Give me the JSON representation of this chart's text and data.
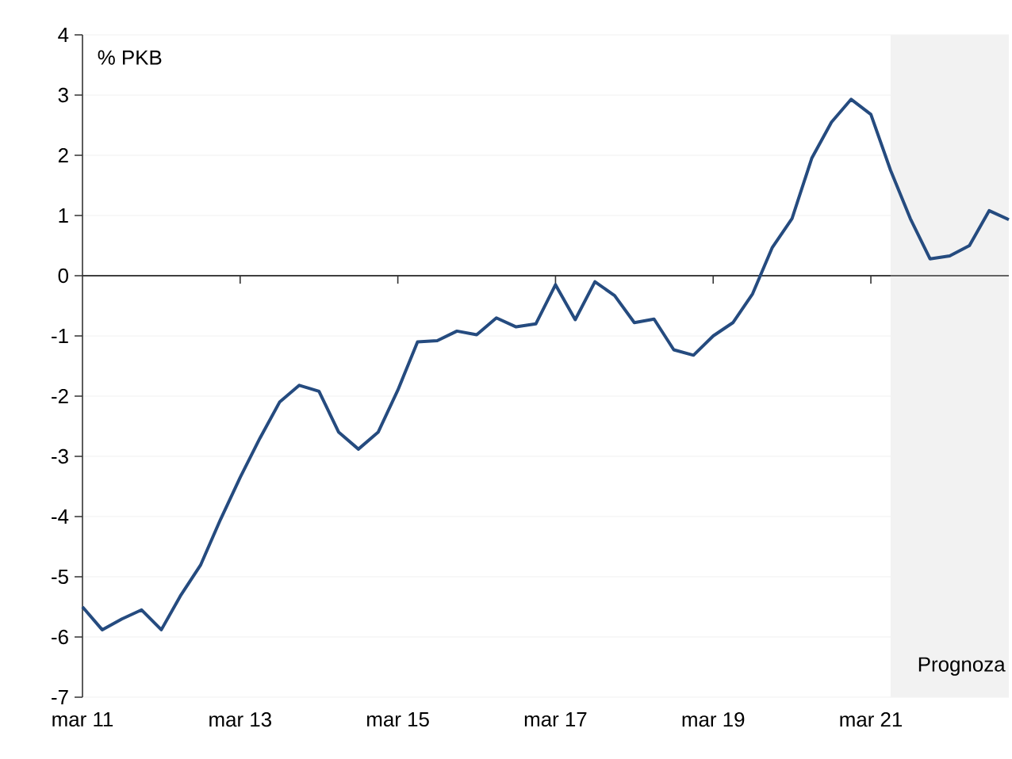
{
  "chart_data": {
    "type": "line",
    "ylabel": "% PKB",
    "x": [
      "2011-03",
      "2011-06",
      "2011-09",
      "2011-12",
      "2012-03",
      "2012-06",
      "2012-09",
      "2012-12",
      "2013-03",
      "2013-06",
      "2013-09",
      "2013-12",
      "2014-03",
      "2014-06",
      "2014-09",
      "2014-12",
      "2015-03",
      "2015-06",
      "2015-09",
      "2015-12",
      "2016-03",
      "2016-06",
      "2016-09",
      "2016-12",
      "2017-03",
      "2017-06",
      "2017-09",
      "2017-12",
      "2018-03",
      "2018-06",
      "2018-09",
      "2018-12",
      "2019-03",
      "2019-06",
      "2019-09",
      "2019-12",
      "2020-03",
      "2020-06",
      "2020-09",
      "2020-12",
      "2021-03",
      "2021-06",
      "2021-09",
      "2021-12",
      "2022-03",
      "2022-06",
      "2022-09",
      "2022-12"
    ],
    "series": [
      {
        "color": "#254b7f",
        "values": [
          -5.5,
          -5.88,
          -5.7,
          -5.55,
          -5.88,
          -5.3,
          -4.8,
          -4.05,
          -3.35,
          -2.7,
          -2.1,
          -1.82,
          -1.92,
          -2.6,
          -2.88,
          -2.6,
          -1.9,
          -1.1,
          -1.08,
          -0.92,
          -0.98,
          -0.7,
          -0.85,
          -0.8,
          -0.15,
          -0.73,
          -0.1,
          -0.33,
          -0.78,
          -0.72,
          -1.23,
          -1.32,
          -1.0,
          -0.78,
          -0.3,
          0.47,
          0.95,
          1.95,
          2.55,
          2.93,
          2.68,
          1.75,
          0.95,
          0.28,
          0.33,
          0.5,
          1.08,
          0.93
        ]
      }
    ],
    "xlim": [
      "2011-03",
      "2022-12"
    ],
    "xticks": [
      {
        "value": "2011-03",
        "label": "mar 11"
      },
      {
        "value": "2013-03",
        "label": "mar 13"
      },
      {
        "value": "2015-03",
        "label": "mar 15"
      },
      {
        "value": "2017-03",
        "label": "mar 17"
      },
      {
        "value": "2019-03",
        "label": "mar 19"
      },
      {
        "value": "2021-03",
        "label": "mar 21"
      }
    ],
    "ylim": [
      -7,
      4
    ],
    "yticks": [
      -7,
      -6,
      -5,
      -4,
      -3,
      -2,
      -1,
      0,
      1,
      2,
      3,
      4
    ],
    "bands": [
      {
        "axis": "x",
        "from": "2021-06",
        "to": "2022-12",
        "label": "Prognoza",
        "color": "#f2f2f2"
      }
    ],
    "grid": "y",
    "marker": "none",
    "line_style": "solid"
  }
}
